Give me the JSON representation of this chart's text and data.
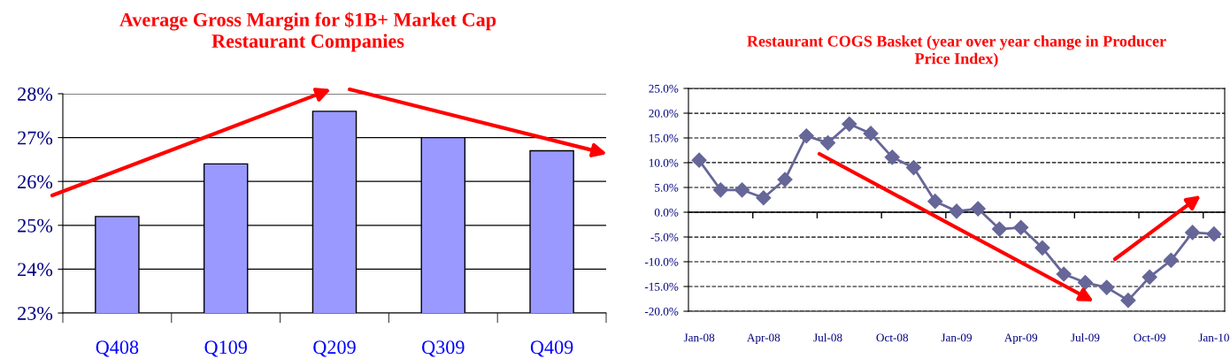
{
  "chart_data": [
    {
      "type": "bar",
      "title": "Average Gross Margin for $1B+ Market Cap\nRestaurant Companies",
      "categories": [
        "Q408",
        "Q109",
        "Q209",
        "Q309",
        "Q409"
      ],
      "values": [
        25.2,
        26.4,
        27.6,
        27.0,
        26.7
      ],
      "color": "#9999ff",
      "ylim": [
        23,
        28
      ],
      "yticks": [
        {
          "value": 23,
          "label": "23%"
        },
        {
          "value": 24,
          "label": "24%"
        },
        {
          "value": 25,
          "label": "25%"
        },
        {
          "value": 26,
          "label": "26%"
        },
        {
          "value": 27,
          "label": "27%"
        },
        {
          "value": 28,
          "label": "28%"
        }
      ],
      "grid": "y"
    },
    {
      "type": "line",
      "title": "Restaurant COGS Basket (year over year change in Producer\nPrice Index)",
      "categories": [
        "Jan-08",
        null,
        null,
        "Apr-08",
        null,
        null,
        "Jul-08",
        null,
        null,
        "Oct-08",
        null,
        null,
        "Jan-09",
        null,
        null,
        "Apr-09",
        null,
        null,
        "Jul-09",
        null,
        null,
        "Oct-09",
        null,
        null,
        "Jan-10"
      ],
      "series": [
        {
          "color": "#666699",
          "values": [
            10.5,
            4.5,
            4.5,
            2.9,
            6.6,
            15.4,
            14.0,
            17.8,
            15.9,
            11.1,
            9.0,
            2.2,
            0.2,
            0.7,
            -3.4,
            -3.1,
            -7.2,
            -12.5,
            -14.2,
            -15.2,
            -17.8,
            -13.1,
            -9.7,
            -4.1,
            -4.4
          ]
        }
      ],
      "marker": "diamond",
      "line_style": "solid",
      "ylim": [
        -20,
        25
      ],
      "yticks": [
        {
          "value": -20,
          "label": "-20.0%"
        },
        {
          "value": -15,
          "label": "-15.0%"
        },
        {
          "value": -10,
          "label": "-10.0%"
        },
        {
          "value": -5,
          "label": "-5.0%"
        },
        {
          "value": 0,
          "label": "0.0%"
        },
        {
          "value": 5,
          "label": "5.0%"
        },
        {
          "value": 10,
          "label": "10.0%"
        },
        {
          "value": 15,
          "label": "15.0%"
        },
        {
          "value": 20,
          "label": "20.0%"
        },
        {
          "value": 25,
          "label": "25.0%"
        }
      ],
      "grid": "y"
    }
  ]
}
